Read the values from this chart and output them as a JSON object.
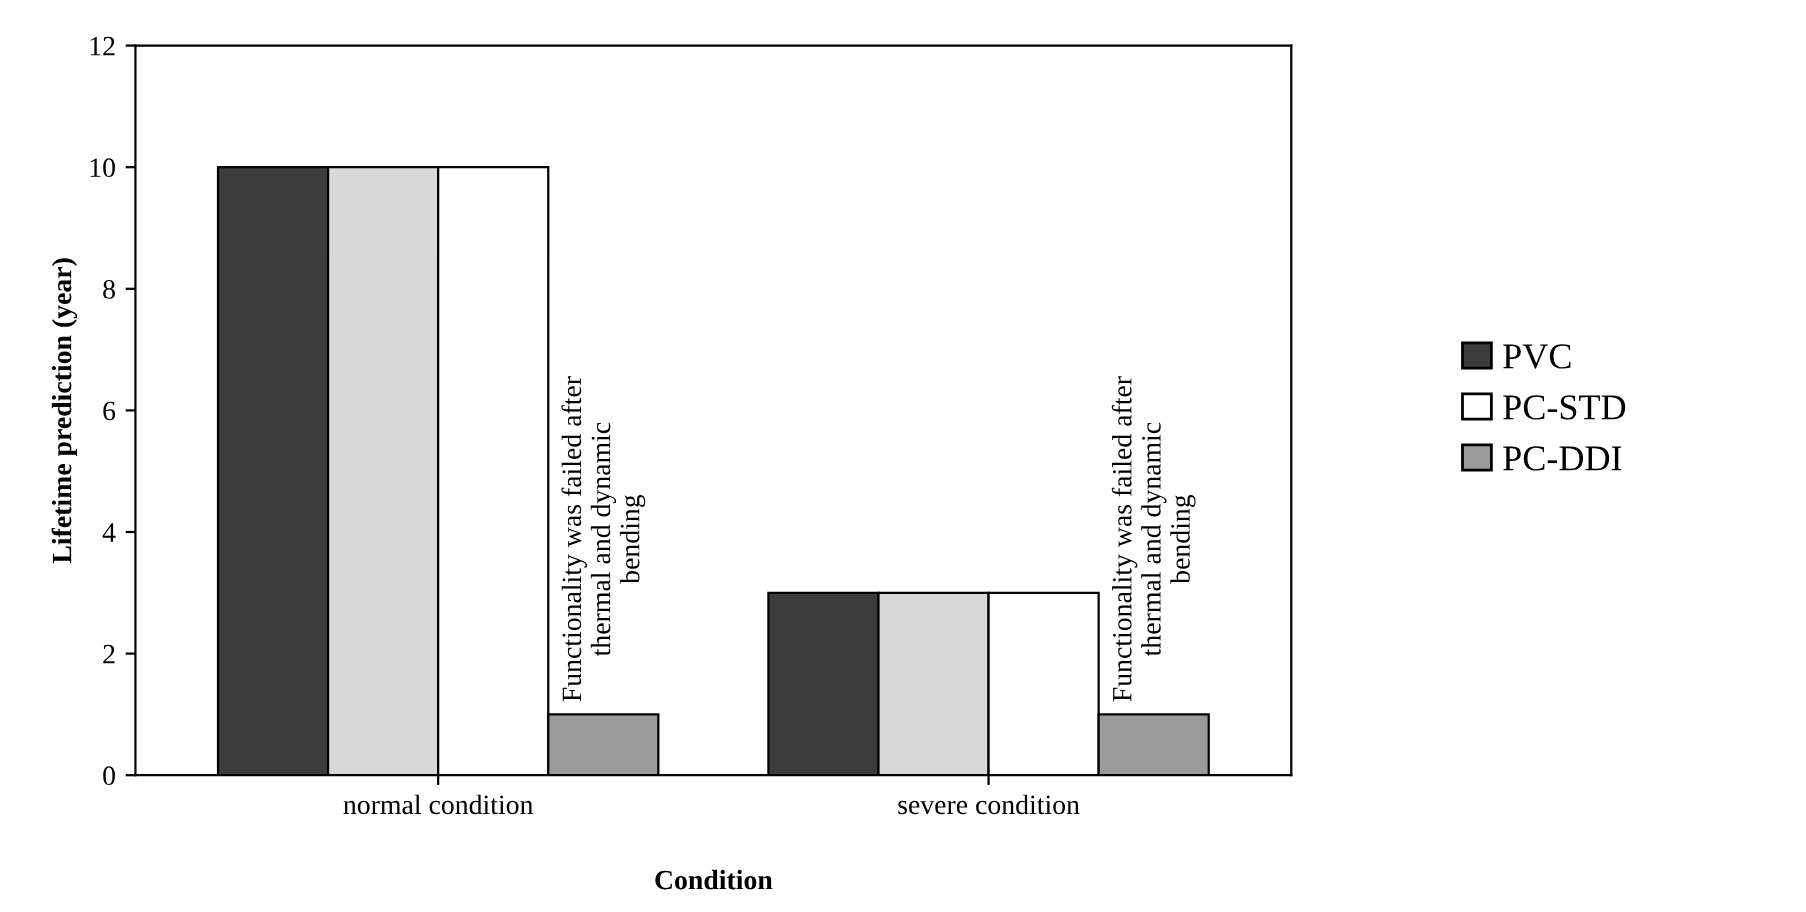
{
  "chart_data": {
    "type": "bar",
    "xlabel": "Condition",
    "ylabel": "Lifetime prediction (year)",
    "categories": [
      "normal condition",
      "severe condition"
    ],
    "series": [
      {
        "name": "PVC",
        "color": "#3c3c3c",
        "values": [
          10,
          3
        ]
      },
      {
        "color": "#d8d8d8",
        "values": [
          10,
          3
        ]
      },
      {
        "name": "PC-STD",
        "color": "#ffffff",
        "values": [
          10,
          3
        ]
      },
      {
        "name": "PC-DDI",
        "color": "#9a9a9a",
        "values": [
          1,
          1
        ]
      }
    ],
    "ylim": [
      0,
      12
    ],
    "yticks": [
      0,
      2,
      4,
      6,
      8,
      10,
      12
    ],
    "grid": false,
    "legend": "right",
    "annotations": [
      "Functionality was failed after\nthermal and dynamic\nbending",
      "Functionality was failed after\nthermal and dynamic\nbending"
    ]
  }
}
